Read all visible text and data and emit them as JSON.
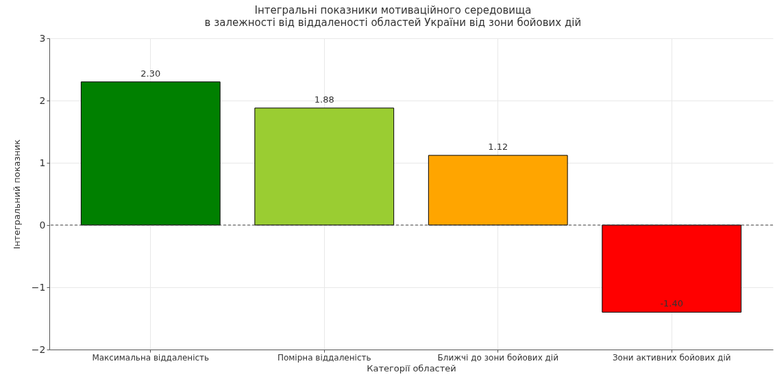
{
  "chart_data": {
    "type": "bar",
    "title": "Інтегральні показники мотиваційного середовища\nв залежності від віддаленості областей України від зони бойових дій",
    "xlabel": "Категорії областей",
    "ylabel": "Інтегральний показник",
    "categories": [
      "Максимальна віддаленість",
      "Помірна віддаленість",
      "Ближчі до зони бойових дій",
      "Зони активних бойових дій"
    ],
    "values": [
      2.3,
      1.88,
      1.12,
      -1.4
    ],
    "colors": [
      "#008000",
      "#9acd32",
      "#ffa500",
      "#ff0000"
    ],
    "value_labels": [
      "2.30",
      "1.88",
      "1.12",
      "-1.40"
    ],
    "ylim": [
      -2,
      3
    ],
    "yticks": [
      -2,
      -1,
      0,
      1,
      2,
      3
    ],
    "grid": true,
    "ref_lines": [
      {
        "axis": "y",
        "value": 0,
        "color": "#444444",
        "line_style": "dashed"
      }
    ]
  }
}
